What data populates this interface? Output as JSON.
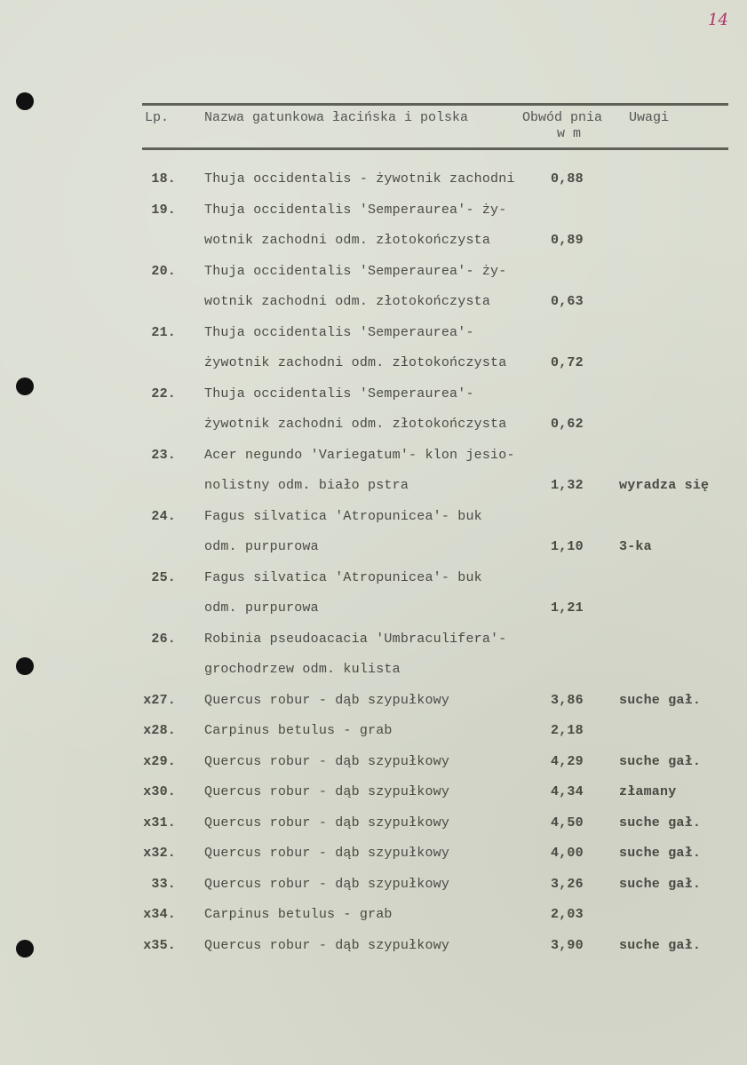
{
  "page_number": "14",
  "header": {
    "lp": "Lp.",
    "name": "Nazwa gatunkowa łacińska i polska",
    "obwod_line1": "Obwód pnia",
    "obwod_line2": "w m",
    "uwagi": "Uwagi"
  },
  "rows": [
    {
      "lp": "18.",
      "lines": [
        "Thuja occidentalis - żywotnik zachodni"
      ],
      "obwod": "0,88",
      "uwagi": ""
    },
    {
      "lp": "19.",
      "lines": [
        "Thuja occidentalis 'Semperaurea'- ży-",
        "wotnik zachodni odm. złotokończysta"
      ],
      "obwod": "0,89",
      "uwagi": ""
    },
    {
      "lp": "20.",
      "lines": [
        "Thuja occidentalis 'Semperaurea'- ży-",
        "wotnik zachodni odm. złotokończysta"
      ],
      "obwod": "0,63",
      "uwagi": ""
    },
    {
      "lp": "21.",
      "lines": [
        "Thuja occidentalis 'Semperaurea'-",
        "żywotnik zachodni odm. złotokończysta"
      ],
      "obwod": "0,72",
      "uwagi": ""
    },
    {
      "lp": "22.",
      "lines": [
        "Thuja occidentalis 'Semperaurea'-",
        "żywotnik zachodni odm. złotokończysta"
      ],
      "obwod": "0,62",
      "uwagi": ""
    },
    {
      "lp": "23.",
      "lines": [
        "Acer negundo 'Variegatum'- klon jesio-",
        "nolistny odm. biało pstra"
      ],
      "obwod": "1,32",
      "uwagi": "wyradza się"
    },
    {
      "lp": "24.",
      "lines": [
        "Fagus silvatica 'Atropunicea'- buk",
        "odm. purpurowa"
      ],
      "obwod": "1,10",
      "uwagi": "3-ka"
    },
    {
      "lp": "25.",
      "lines": [
        "Fagus silvatica 'Atropunicea'- buk",
        "odm. purpurowa"
      ],
      "obwod": "1,21",
      "uwagi": ""
    },
    {
      "lp": "26.",
      "lines": [
        "Robinia pseudoacacia 'Umbraculifera'-",
        "grochodrzew odm. kulista"
      ],
      "obwod": "",
      "uwagi": ""
    },
    {
      "lp": "x27.",
      "lines": [
        "Quercus robur - dąb szypułkowy"
      ],
      "obwod": "3,86",
      "uwagi": "suche gał."
    },
    {
      "lp": "x28.",
      "lines": [
        "Carpinus betulus - grab"
      ],
      "obwod": "2,18",
      "uwagi": ""
    },
    {
      "lp": "x29.",
      "lines": [
        "Quercus robur - dąb szypułkowy"
      ],
      "obwod": "4,29",
      "uwagi": "suche gał."
    },
    {
      "lp": "x30.",
      "lines": [
        "Quercus robur - dąb szypułkowy"
      ],
      "obwod": "4,34",
      "uwagi": "złamany"
    },
    {
      "lp": "x31.",
      "lines": [
        "Quercus robur - dąb szypułkowy"
      ],
      "obwod": "4,50",
      "uwagi": "suche gał."
    },
    {
      "lp": "x32.",
      "lines": [
        "Quercus robur - dąb szypułkowy"
      ],
      "obwod": "4,00",
      "uwagi": "suche gał."
    },
    {
      "lp": "33.",
      "lines": [
        "Quercus robur - dąb szypułkowy"
      ],
      "obwod": "3,26",
      "uwagi": "suche gał."
    },
    {
      "lp": "x34.",
      "lines": [
        "Carpinus betulus - grab"
      ],
      "obwod": "2,03",
      "uwagi": ""
    },
    {
      "lp": "x35.",
      "lines": [
        "Quercus robur - dąb szypułkowy"
      ],
      "obwod": "3,90",
      "uwagi": "suche gał."
    }
  ]
}
